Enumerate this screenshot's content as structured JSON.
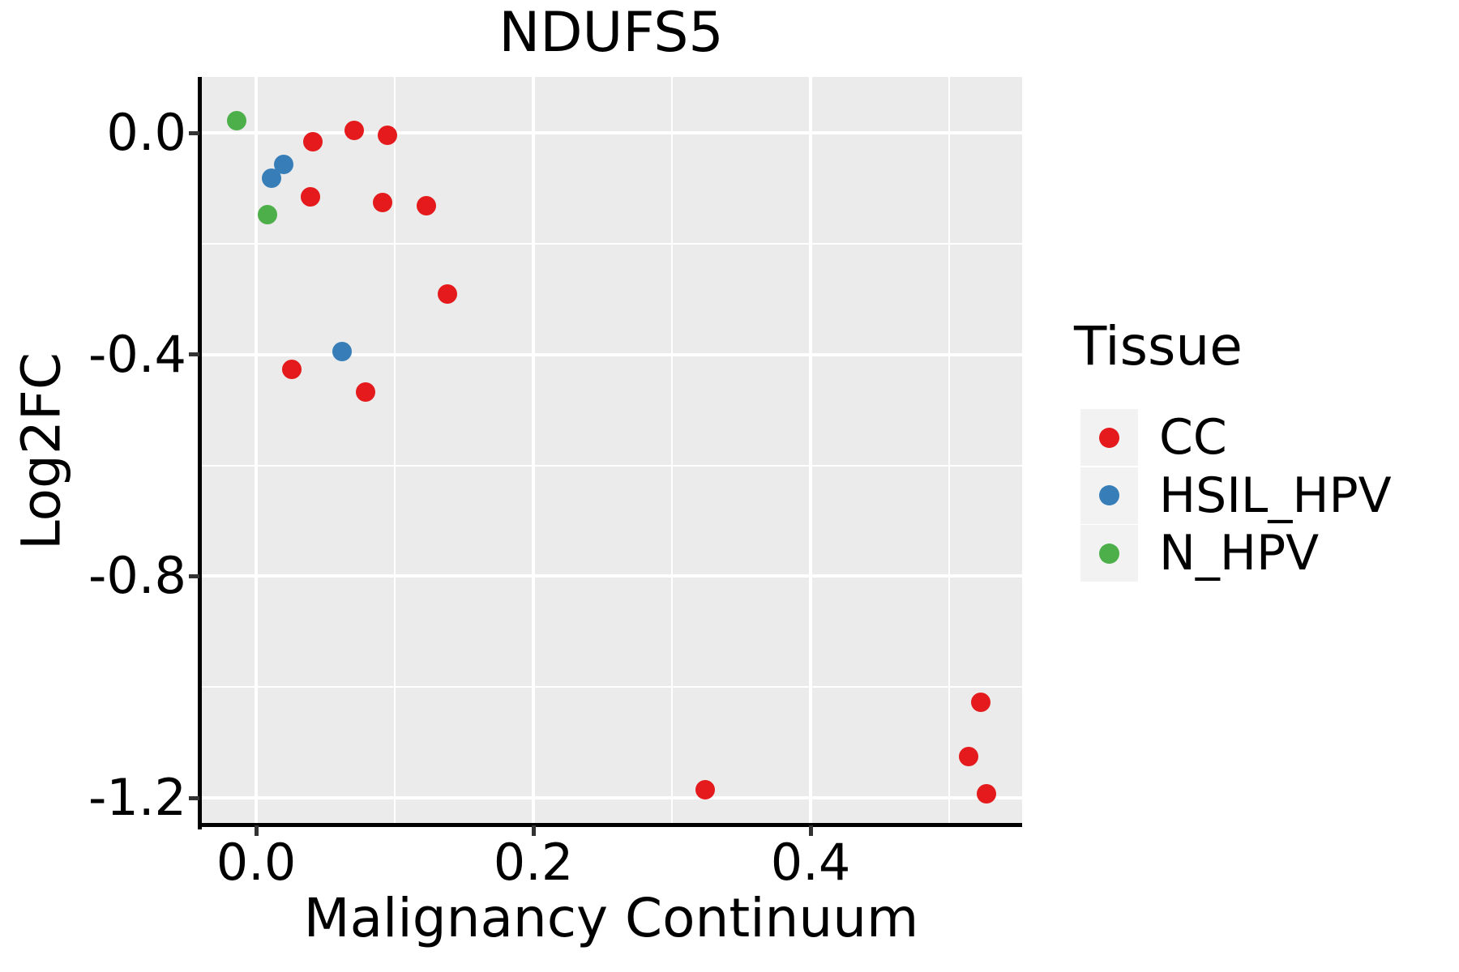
{
  "chart_data": {
    "type": "scatter",
    "title": "NDUFS5",
    "xlabel": "Malignancy Continuum",
    "ylabel": "Log2FC",
    "legend_title": "Tissue",
    "legend_position": "right",
    "grid": true,
    "panel_bg": "#EBEBEB",
    "gridline_color": "#FFFFFF",
    "legend_key_bg": "#F2F2F2",
    "xlim": [
      -0.04,
      0.553
    ],
    "ylim": [
      -1.25,
      0.101
    ],
    "x_ticks": [
      {
        "v": 0.0,
        "label": "0.0"
      },
      {
        "v": 0.2,
        "label": "0.2"
      },
      {
        "v": 0.4,
        "label": "0.4"
      }
    ],
    "y_ticks": [
      {
        "v": 0.0,
        "label": "0.0"
      },
      {
        "v": -0.4,
        "label": "-0.4"
      },
      {
        "v": -0.8,
        "label": "-0.8"
      },
      {
        "v": -1.2,
        "label": "-1.2"
      }
    ],
    "x_minor_gridlines": [
      0.1,
      0.3,
      0.5
    ],
    "y_minor_gridlines": [
      -0.2,
      -0.6,
      -1.0
    ],
    "series": [
      {
        "name": "CC",
        "color": "#E41A1C",
        "points": [
          [
            0.041,
            -0.016
          ],
          [
            0.071,
            0.005
          ],
          [
            0.095,
            -0.005
          ],
          [
            0.039,
            -0.115
          ],
          [
            0.091,
            -0.126
          ],
          [
            0.123,
            -0.131
          ],
          [
            0.138,
            -0.291
          ],
          [
            0.026,
            -0.427
          ],
          [
            0.079,
            -0.468
          ],
          [
            0.324,
            -1.186
          ],
          [
            0.523,
            -1.027
          ],
          [
            0.514,
            -1.125
          ],
          [
            0.527,
            -1.193
          ]
        ]
      },
      {
        "name": "HSIL_HPV",
        "color": "#377EB8",
        "points": [
          [
            0.02,
            -0.057
          ],
          [
            0.011,
            -0.082
          ],
          [
            0.062,
            -0.394
          ]
        ]
      },
      {
        "name": "N_HPV",
        "color": "#4DAF4A",
        "points": [
          [
            -0.014,
            0.022
          ],
          [
            0.008,
            -0.147
          ]
        ]
      }
    ]
  }
}
